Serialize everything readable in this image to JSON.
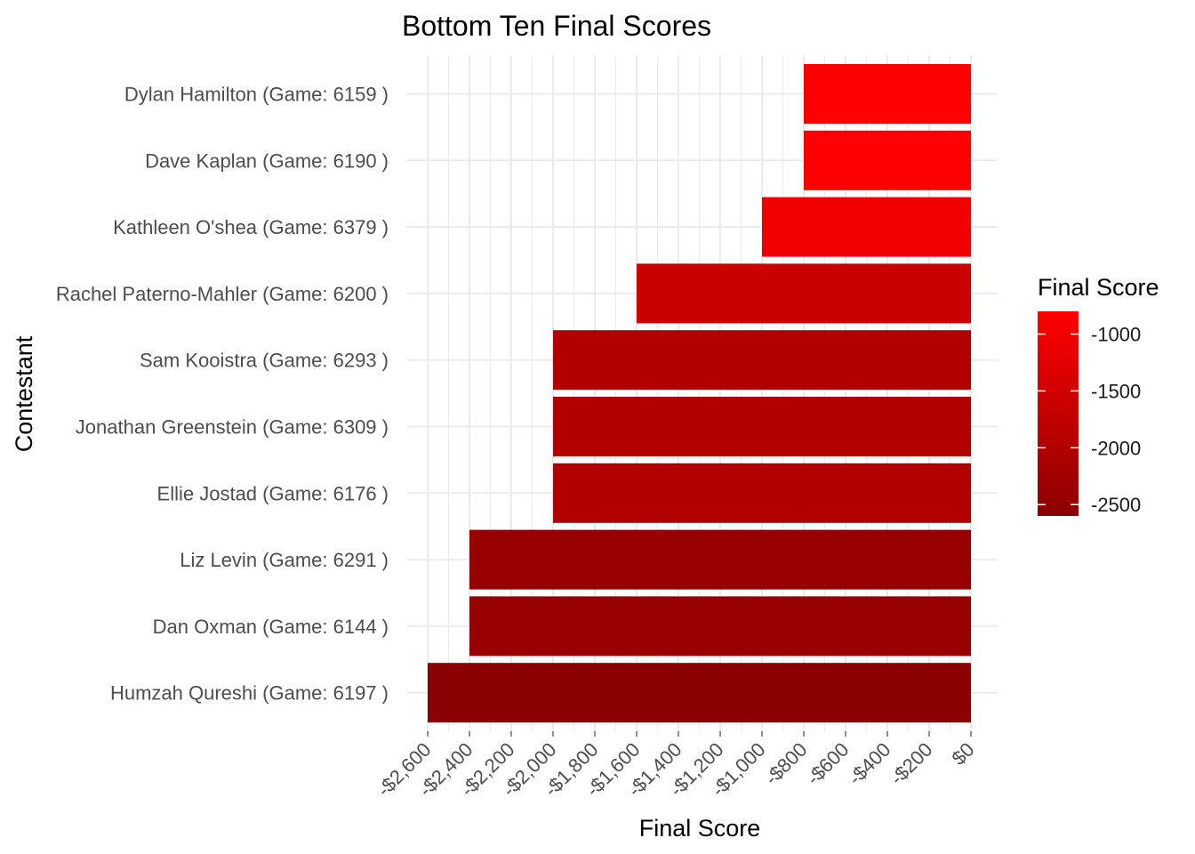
{
  "chart_data": {
    "type": "bar",
    "orientation": "horizontal",
    "title": "Bottom Ten Final Scores",
    "xlabel": "Final Score",
    "ylabel": "Contestant",
    "categories": [
      "Dylan Hamilton (Game: 6159 )",
      "Dave Kaplan (Game: 6190 )",
      "Kathleen O'shea (Game: 6379 )",
      "Rachel Paterno-Mahler (Game: 6200 )",
      "Sam Kooistra (Game: 6293 )",
      "Jonathan Greenstein (Game: 6309 )",
      "Ellie Jostad (Game: 6176 )",
      "Liz Levin (Game: 6291 )",
      "Dan Oxman (Game: 6144 )",
      "Humzah Qureshi (Game: 6197 )"
    ],
    "values": [
      -800,
      -800,
      -1000,
      -1600,
      -2000,
      -2000,
      -2000,
      -2400,
      -2400,
      -2600
    ],
    "xlim": [
      -2600,
      0
    ],
    "x_ticks": [
      -2600,
      -2400,
      -2200,
      -2000,
      -1800,
      -1600,
      -1400,
      -1200,
      -1000,
      -800,
      -600,
      -400,
      -200,
      0
    ],
    "x_tick_labels": [
      "-$2,600",
      "-$2,400",
      "-$2,200",
      "-$2,000",
      "-$1,800",
      "-$1,600",
      "-$1,400",
      "-$1,200",
      "-$1,000",
      "-$800",
      "-$600",
      "-$400",
      "-$200",
      "$0"
    ],
    "grid": true,
    "legend": {
      "title": "Final Score",
      "position": "right",
      "type": "gradient",
      "low_color": "#8b0000",
      "high_color": "#ff0000",
      "range": [
        -2600,
        -800
      ],
      "ticks": [
        -1000,
        -1500,
        -2000,
        -2500
      ],
      "tick_labels": [
        "-1000",
        "-1500",
        "-2000",
        "-2500"
      ]
    }
  }
}
